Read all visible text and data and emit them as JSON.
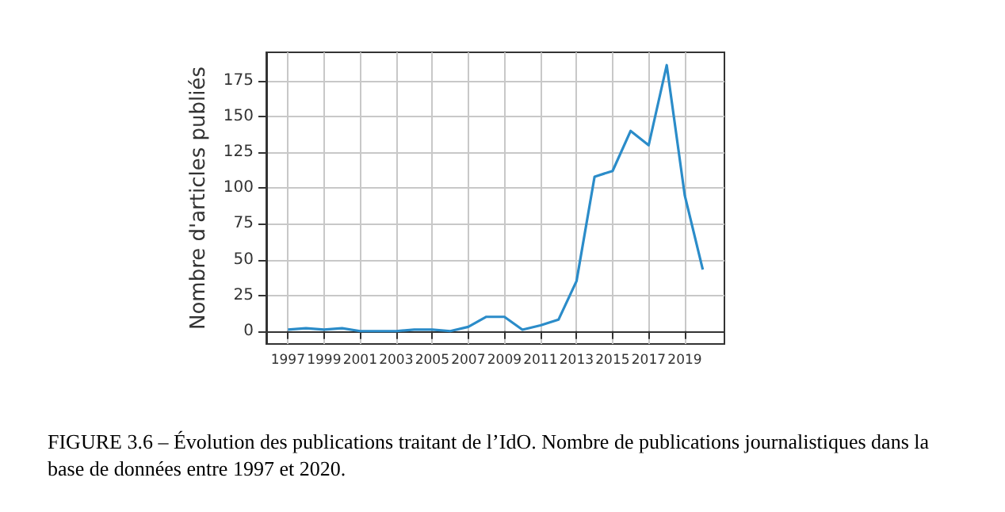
{
  "chart_data": {
    "type": "line",
    "ylabel": "Nombre d'articles publiés",
    "x": [
      1997,
      1998,
      1999,
      2000,
      2001,
      2002,
      2003,
      2004,
      2005,
      2006,
      2007,
      2008,
      2009,
      2010,
      2011,
      2012,
      2013,
      2014,
      2015,
      2016,
      2017,
      2018,
      2019,
      2020
    ],
    "series": [
      {
        "color": "#2b8cc9",
        "values": [
          1,
          2,
          1,
          2,
          0,
          0,
          0,
          1,
          1,
          0,
          3,
          10,
          10,
          1,
          4,
          8,
          35,
          108,
          112,
          140,
          130,
          186,
          95,
          43
        ]
      }
    ],
    "xlim": [
      1995.8,
      2021.2
    ],
    "xticks": [
      1997,
      1999,
      2001,
      2003,
      2005,
      2007,
      2009,
      2011,
      2013,
      2015,
      2017,
      2019
    ],
    "ylim": [
      -9,
      195
    ],
    "yticks": [
      0,
      25,
      50,
      75,
      100,
      125,
      150,
      175
    ],
    "grid": true,
    "marker": "none",
    "line_style": "solid",
    "annotations": [
      "FIGURE 3.6 – Évolution des publications traitant de l’IdO. Nombre de publications journalistiques dans la base de données entre 1997 et 2020."
    ]
  }
}
